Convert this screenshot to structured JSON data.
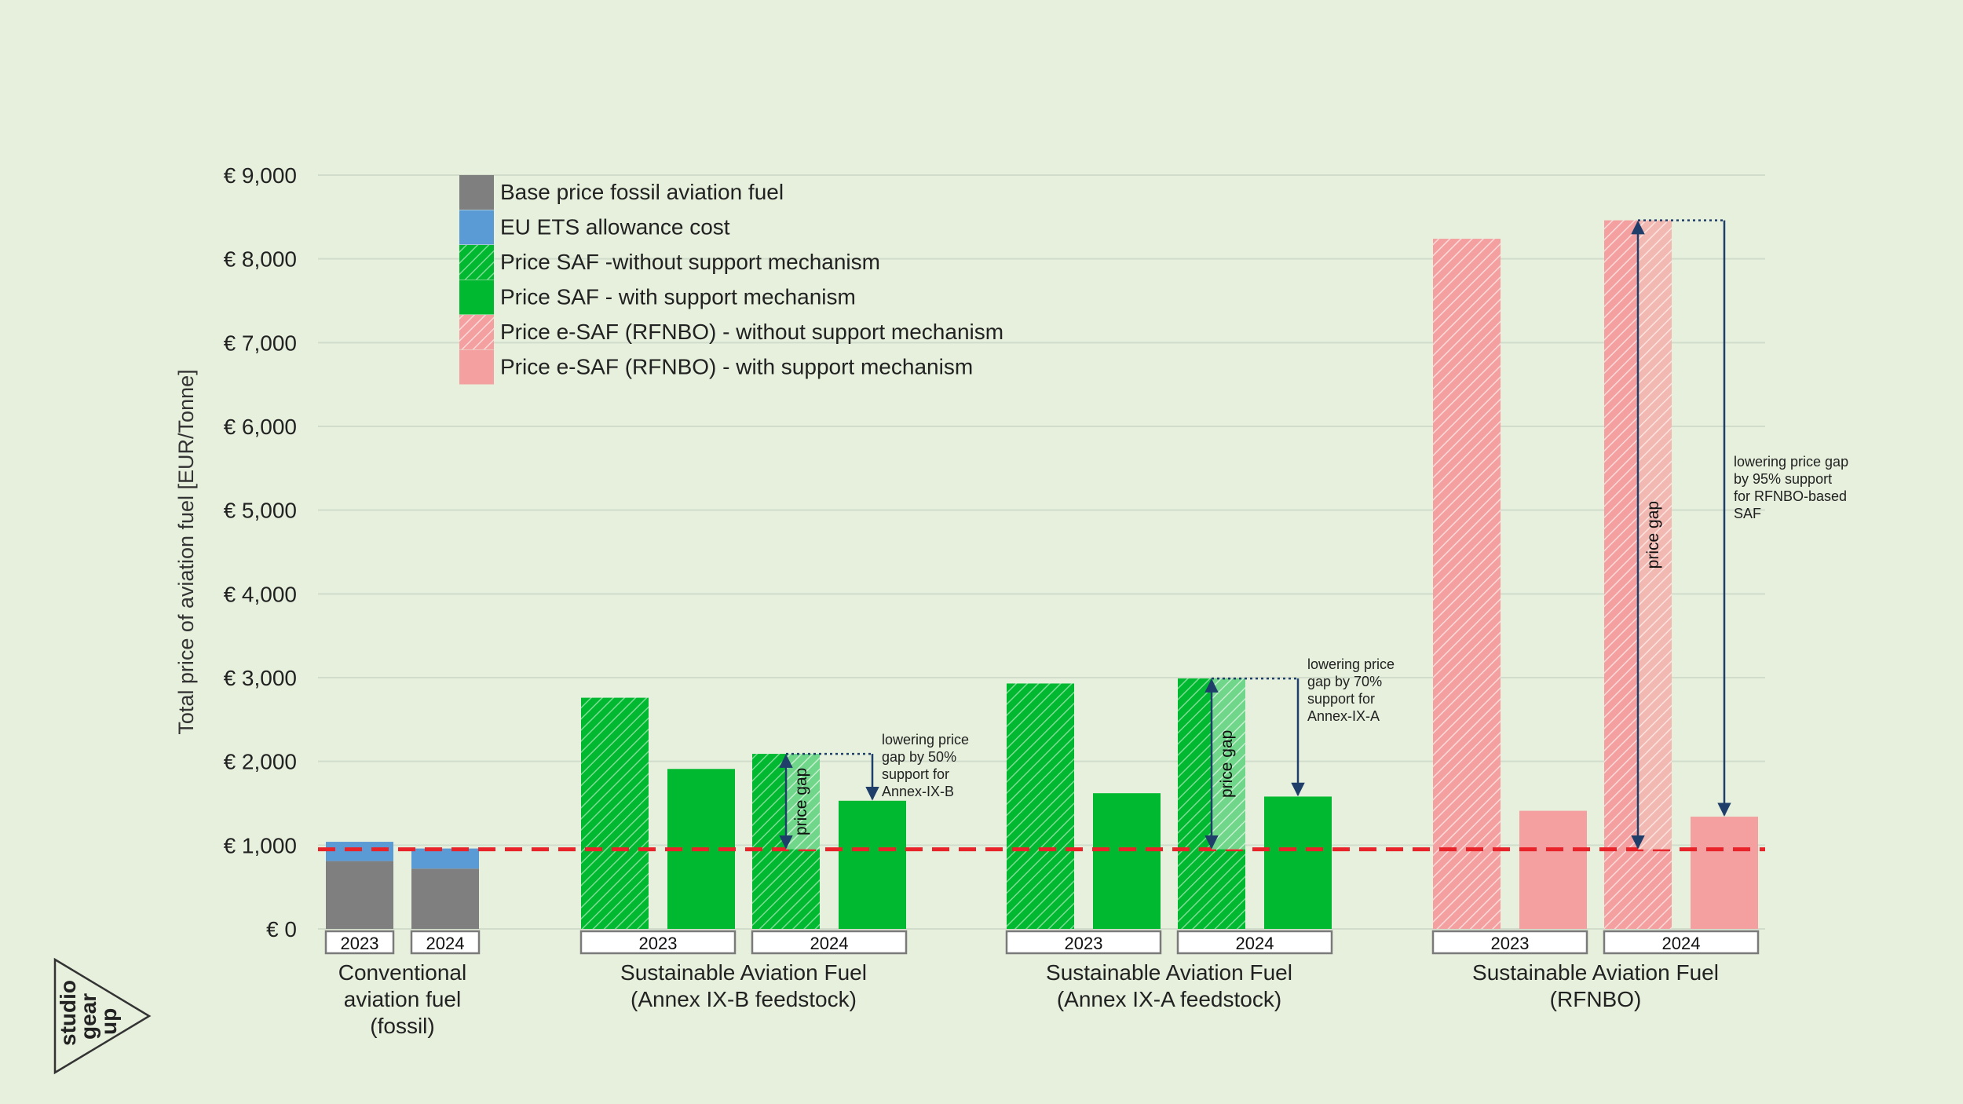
{
  "chart_data": {
    "type": "bar",
    "ylabel": "Total price of aviation fuel [EUR/Tonne]",
    "ylim": [
      0,
      9000
    ],
    "yticks": [
      {
        "value": 0,
        "label": "€ 0"
      },
      {
        "value": 1000,
        "label": "€ 1,000"
      },
      {
        "value": 2000,
        "label": "€ 2,000"
      },
      {
        "value": 3000,
        "label": "€ 3,000"
      },
      {
        "value": 4000,
        "label": "€ 4,000"
      },
      {
        "value": 5000,
        "label": "€ 5,000"
      },
      {
        "value": 6000,
        "label": "€ 6,000"
      },
      {
        "value": 7000,
        "label": "€ 7,000"
      },
      {
        "value": 8000,
        "label": "€ 8,000"
      },
      {
        "value": 9000,
        "label": "€ 9,000"
      }
    ],
    "grid": true,
    "legend_position": "top-left",
    "legend": [
      {
        "label": "Base price fossil aviation fuel",
        "color": "#7f7f7f",
        "pattern": "solid"
      },
      {
        "label": "EU ETS allowance cost",
        "color": "#5b9bd5",
        "pattern": "solid"
      },
      {
        "label": "Price SAF -without support mechanism",
        "color": "#00b930",
        "pattern": "hatched"
      },
      {
        "label": "Price SAF - with support mechanism",
        "color": "#00b930",
        "pattern": "solid"
      },
      {
        "label": "Price e-SAF (RFNBO) - without support mechanism",
        "color": "#f4a0a0",
        "pattern": "hatched"
      },
      {
        "label": "Price e-SAF (RFNBO) - with support mechanism",
        "color": "#f4a0a0",
        "pattern": "solid"
      }
    ],
    "reference_line": {
      "value": 950,
      "color": "#e8232a",
      "style": "dashed"
    },
    "groups": [
      {
        "label_lines": [
          "Conventional",
          "aviation fuel",
          "(fossil)"
        ],
        "years": [
          {
            "year": "2023",
            "bars": [
              {
                "series": "fossil",
                "base": 810,
                "ets": 230
              }
            ]
          },
          {
            "year": "2024",
            "bars": [
              {
                "series": "fossil",
                "base": 720,
                "ets": 240
              }
            ]
          }
        ]
      },
      {
        "label_lines": [
          "Sustainable Aviation Fuel",
          "(Annex IX-B feedstock)"
        ],
        "years": [
          {
            "year": "2023",
            "bars": [
              {
                "series": "saf_without",
                "value": 2760
              },
              {
                "series": "saf_with",
                "value": 1910
              }
            ]
          },
          {
            "year": "2024",
            "bars": [
              {
                "series": "saf_without",
                "value": 2090
              },
              {
                "series": "saf_with",
                "value": 1530
              }
            ]
          }
        ],
        "annotation": {
          "gap_label": "price gap",
          "note_lines": [
            "lowering price",
            "gap by 50%",
            "support for",
            "Annex-IX-B"
          ],
          "from_value": 2090,
          "to_value": 1530,
          "gap_bottom": 950
        }
      },
      {
        "label_lines": [
          "Sustainable Aviation Fuel",
          "(Annex IX-A feedstock)"
        ],
        "years": [
          {
            "year": "2023",
            "bars": [
              {
                "series": "saf_without",
                "value": 2930
              },
              {
                "series": "saf_with",
                "value": 1620
              }
            ]
          },
          {
            "year": "2024",
            "bars": [
              {
                "series": "saf_without",
                "value": 2990
              },
              {
                "series": "saf_with",
                "value": 1580
              }
            ]
          }
        ],
        "annotation": {
          "gap_label": "price gap",
          "note_lines": [
            "lowering price",
            "gap by 70%",
            "support for",
            "Annex-IX-A"
          ],
          "from_value": 2990,
          "to_value": 1580,
          "gap_bottom": 950
        }
      },
      {
        "label_lines": [
          "Sustainable Aviation Fuel",
          "(RFNBO)"
        ],
        "years": [
          {
            "year": "2023",
            "bars": [
              {
                "series": "esaf_without",
                "value": 8240
              },
              {
                "series": "esaf_with",
                "value": 1410
              }
            ]
          },
          {
            "year": "2024",
            "bars": [
              {
                "series": "esaf_without",
                "value": 8460
              },
              {
                "series": "esaf_with",
                "value": 1340
              }
            ]
          }
        ],
        "annotation": {
          "gap_label": "price gap",
          "note_lines": [
            "lowering price gap",
            "by 95% support",
            "for RFNBO-based",
            "SAF"
          ],
          "from_value": 8460,
          "to_value": 1340,
          "gap_bottom": 950
        }
      }
    ]
  },
  "logo": {
    "lines": [
      "studio",
      "gear",
      "up"
    ]
  }
}
